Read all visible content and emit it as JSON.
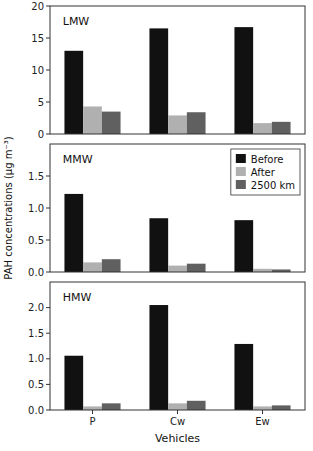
{
  "chart_data": [
    {
      "type": "bar",
      "title": "LMW",
      "categories": [
        "P",
        "Cw",
        "Ew"
      ],
      "series": [
        {
          "name": "Before",
          "color": "#111111",
          "values": [
            13.0,
            16.5,
            16.7
          ]
        },
        {
          "name": "After",
          "color": "#b0b0b0",
          "values": [
            4.3,
            2.9,
            1.7
          ]
        },
        {
          "name": "2500 km",
          "color": "#606060",
          "values": [
            3.5,
            3.4,
            1.9
          ]
        }
      ],
      "ylim": [
        0,
        20
      ],
      "yticks": [
        0,
        5,
        10,
        15,
        20
      ],
      "grid": false,
      "tick_labels": "y"
    },
    {
      "type": "bar",
      "title": "MMW",
      "categories": [
        "P",
        "Cw",
        "Ew"
      ],
      "ylabel": "PAH concentrations (μg m⁻³)",
      "series": [
        {
          "name": "Before",
          "color": "#111111",
          "values": [
            1.22,
            0.84,
            0.81
          ]
        },
        {
          "name": "After",
          "color": "#b0b0b0",
          "values": [
            0.15,
            0.1,
            0.05
          ]
        },
        {
          "name": "2500 km",
          "color": "#606060",
          "values": [
            0.2,
            0.13,
            0.04
          ]
        }
      ],
      "ylim": [
        0,
        2.0
      ],
      "yticks": [
        {
          "value": 0.0,
          "label": "0.0"
        },
        0.5,
        {
          "value": 1.0,
          "label": "1.0"
        },
        1.5
      ],
      "grid": false,
      "legend": "upper right",
      "tick_labels": "y"
    },
    {
      "type": "bar",
      "title": "HMW",
      "categories": [
        "P",
        "Cw",
        "Ew"
      ],
      "xlabel": "Vehicles",
      "series": [
        {
          "name": "Before",
          "color": "#111111",
          "values": [
            1.06,
            2.05,
            1.29
          ]
        },
        {
          "name": "After",
          "color": "#b0b0b0",
          "values": [
            0.07,
            0.13,
            0.07
          ]
        },
        {
          "name": "2500 km",
          "color": "#606060",
          "values": [
            0.13,
            0.18,
            0.09
          ]
        }
      ],
      "ylim": [
        0,
        2.5
      ],
      "yticks": [
        {
          "value": 0.0,
          "label": "0.0"
        },
        0.5,
        {
          "value": 1.0,
          "label": "1.0"
        },
        1.5,
        {
          "value": 2.0,
          "label": "2.0"
        }
      ],
      "grid": false
    }
  ]
}
